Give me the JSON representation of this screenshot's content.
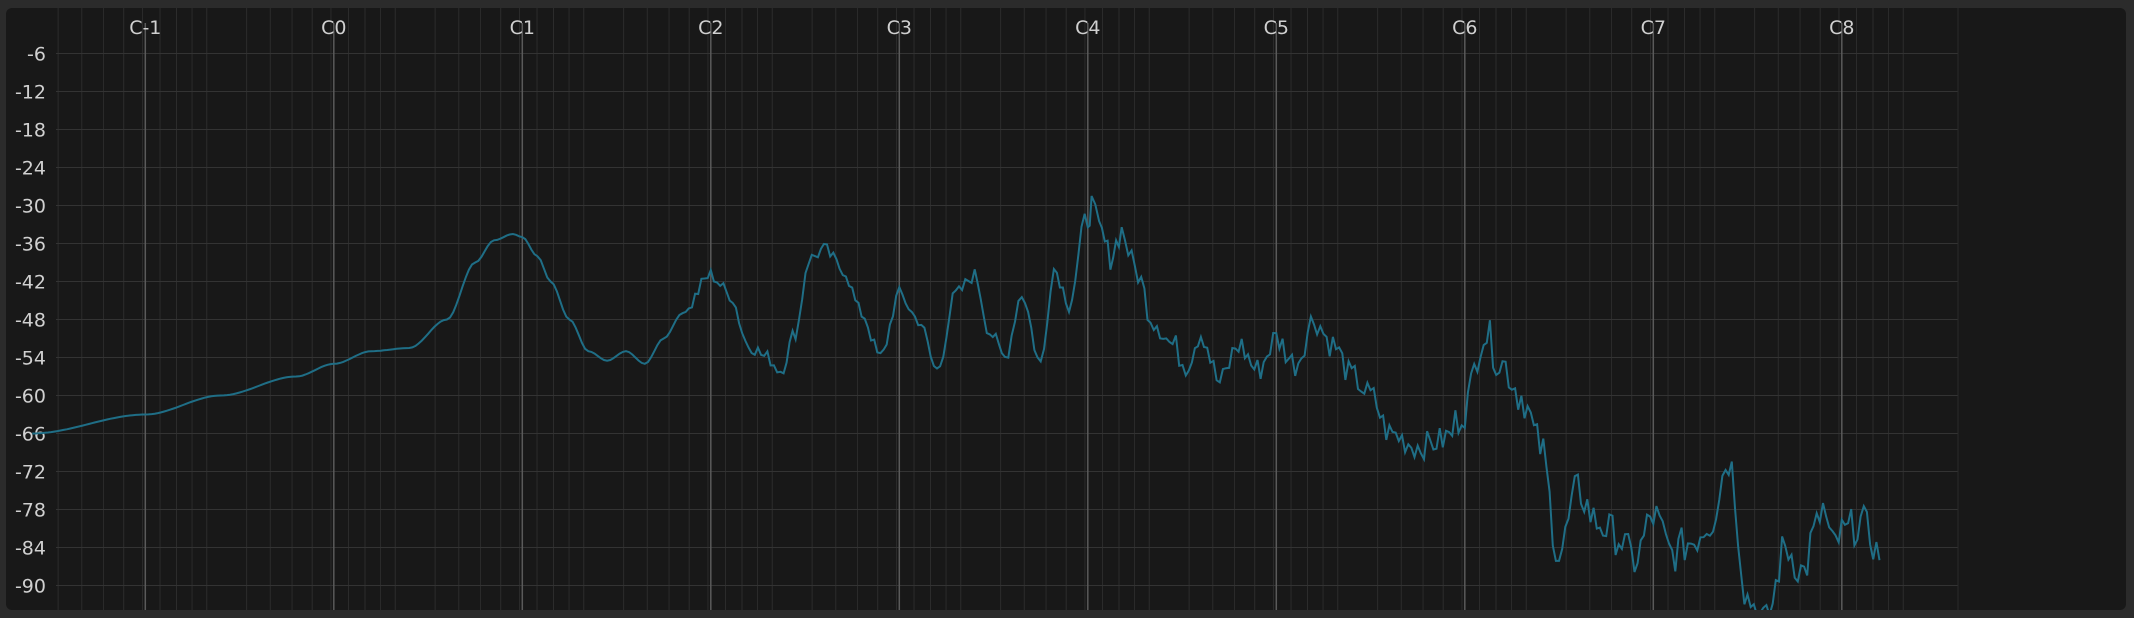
{
  "chart_data": {
    "type": "line",
    "title": "",
    "xlabel": "",
    "ylabel": "",
    "x_scale": "octave",
    "xlim": [
      -1.0,
      9.0
    ],
    "ylim": [
      -92,
      -2
    ],
    "x_tick_labels": [
      "C-1",
      "C0",
      "C1",
      "C2",
      "C3",
      "C4",
      "C5",
      "C6",
      "C7",
      "C8"
    ],
    "x_tick_values": [
      -0.4,
      0.6,
      1.6,
      2.6,
      3.6,
      4.6,
      5.6,
      6.6,
      7.6,
      8.6
    ],
    "y_ticks": [
      -6,
      -12,
      -18,
      -24,
      -30,
      -36,
      -42,
      -48,
      -54,
      -60,
      -66,
      -72,
      -78,
      -84,
      -90
    ],
    "grid": true,
    "line_color": "#1f6e86",
    "background": "#181818",
    "series": [
      {
        "x": [
          -1.0,
          -0.4,
          0.0,
          0.4,
          0.6,
          0.8,
          1.0,
          1.2,
          1.35,
          1.45,
          1.55,
          1.6,
          1.68,
          1.75,
          1.85,
          1.95,
          2.05,
          2.15,
          2.25,
          2.35,
          2.45,
          2.6,
          2.7,
          2.8,
          2.9,
          2.97,
          3.05,
          3.12,
          3.2,
          3.3,
          3.4,
          3.5,
          3.6,
          3.7,
          3.8,
          3.9,
          4.0,
          4.08,
          4.16,
          4.25,
          4.35,
          4.42,
          4.5,
          4.6,
          4.62,
          4.66,
          4.72,
          4.78,
          4.85,
          4.95,
          5.05,
          5.12,
          5.2,
          5.3,
          5.4,
          5.5,
          5.6,
          5.7,
          5.8,
          5.9,
          6.0,
          6.1,
          6.2,
          6.35,
          6.5,
          6.6,
          6.7,
          6.8,
          6.9,
          7.0,
          7.1,
          7.2,
          7.3,
          7.4,
          7.5,
          7.6,
          7.7,
          7.8,
          7.9,
          8.0,
          8.1,
          8.2,
          8.3,
          8.4,
          8.45,
          8.5,
          8.55,
          8.6,
          8.7,
          8.75,
          8.8
        ],
        "y": [
          -66,
          -63,
          -60,
          -57,
          -55,
          -53,
          -52.5,
          -48,
          -39,
          -35.5,
          -34.5,
          -35,
          -38,
          -42,
          -48,
          -53,
          -54.5,
          -53,
          -55,
          -51,
          -47,
          -41,
          -44,
          -52,
          -54,
          -56,
          -50,
          -38.5,
          -37,
          -40,
          -47,
          -54,
          -44,
          -48,
          -56,
          -44,
          -41,
          -50,
          -54,
          -44,
          -55,
          -40,
          -45,
          -32,
          -30,
          -34,
          -38,
          -34,
          -40,
          -48,
          -52,
          -55,
          -50,
          -58,
          -52,
          -56,
          -51,
          -55,
          -48,
          -52,
          -57,
          -60,
          -66,
          -68,
          -67,
          -62,
          -50,
          -55,
          -60,
          -68,
          -85,
          -75,
          -80,
          -82,
          -86,
          -79,
          -85,
          -83,
          -80,
          -70,
          -92,
          -96,
          -84,
          -88,
          -82,
          -78,
          -84,
          -82,
          -80,
          -82,
          -86
        ]
      }
    ]
  }
}
